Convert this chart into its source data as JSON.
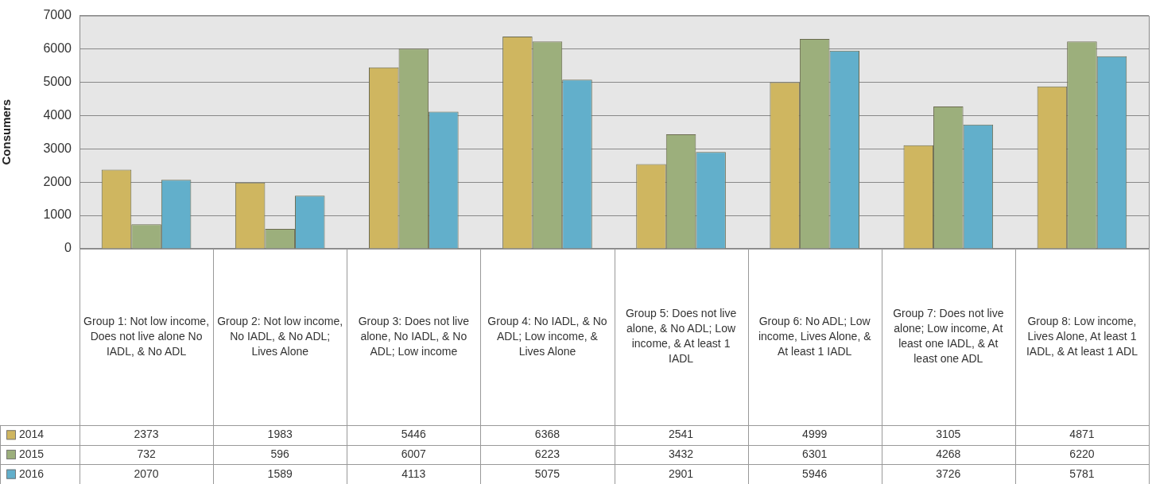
{
  "chart_data": {
    "type": "bar",
    "ylabel": "Consumers",
    "categories": [
      "Group 1: Not low income, Does not live alone No IADL, & No ADL",
      "Group 2: Not low income, No IADL, & No ADL; Lives Alone",
      "Group 3: Does not live alone, No IADL, & No ADL; Low income",
      "Group 4: No IADL, & No ADL; Low income, & Lives Alone",
      "Group 5: Does not live alone, & No ADL; Low income, & At least 1 IADL",
      "Group 6: No ADL; Low income, Lives Alone, & At least 1 IADL",
      "Group 7: Does not live alone; Low income, At least one IADL, & At least one ADL",
      "Group 8: Low income, Lives Alone, At least 1 IADL, & At least 1 ADL"
    ],
    "series": [
      {
        "name": "2014",
        "color": "#cfb660",
        "values": [
          2373,
          1983,
          5446,
          6368,
          2541,
          4999,
          3105,
          4871
        ]
      },
      {
        "name": "2015",
        "color": "#9caf7c",
        "values": [
          732,
          596,
          6007,
          6223,
          3432,
          6301,
          4268,
          6220
        ]
      },
      {
        "name": "2016",
        "color": "#62afcb",
        "values": [
          2070,
          1589,
          4113,
          5075,
          2901,
          5946,
          3726,
          5781
        ]
      }
    ],
    "ylim": [
      0,
      7000
    ],
    "yticks": [
      0,
      1000,
      2000,
      3000,
      4000,
      5000,
      6000,
      7000
    ],
    "grid": "y",
    "legend": "bottom",
    "data_labels": true
  }
}
